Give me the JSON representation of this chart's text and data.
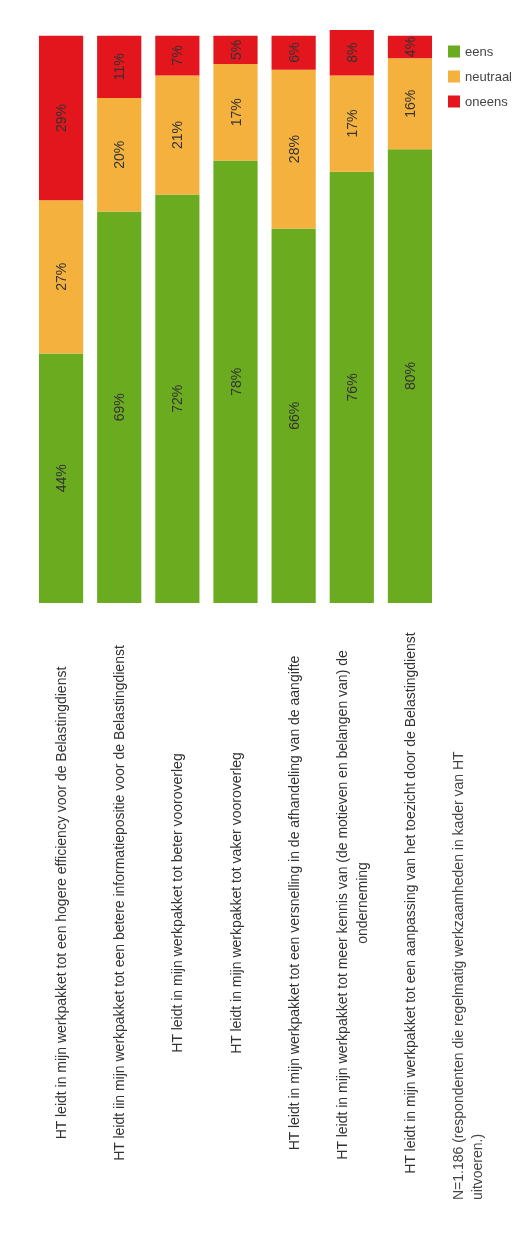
{
  "chart_data": {
    "type": "bar",
    "stacked": true,
    "legend": "top right",
    "categories": [
      "HT leidt in mijn werkpakket tot een hogere efficiency voor de Belastingdienst",
      "HT leidt iin mijn werkpakket tot een betere informatiepositie voor de Belastingdienst",
      "HT leidt in mijn werkpakket tot beter vooroverleg",
      "HT leidt in mijn werkpakket tot vaker vooroverleg",
      "HT leidt in mijn werkpakket tot een versnelling in de afhandeling van de aangifte",
      "HT leidt in mijn werkpakket tot meer kennis van (de motieven en belangen van) de onderneming",
      "HT leidt in mijn werkpakket tot een aanpassing van het toezicht door de Belastingdienst"
    ],
    "series": [
      {
        "name": "eens",
        "color": "#6aab1f",
        "values": [
          44,
          69,
          72,
          78,
          66,
          76,
          80
        ],
        "value_labels": [
          "44%",
          "69%",
          "72%",
          "78%",
          "66%",
          "76%",
          "80%"
        ]
      },
      {
        "name": "neutraal",
        "color": "#f5b13d",
        "values": [
          27,
          20,
          21,
          17,
          28,
          17,
          16
        ],
        "value_labels": [
          "27%",
          "20%",
          "21%",
          "17%",
          "28%",
          "17%",
          "16%"
        ]
      },
      {
        "name": "oneens",
        "color": "#e3161d",
        "values": [
          29,
          11,
          7,
          5,
          6,
          8,
          4
        ],
        "value_labels": [
          "29%",
          "11%",
          "7%",
          "5%",
          "6%",
          "8%",
          "4%"
        ]
      }
    ],
    "annotations": [
      "N=1.186 (respondenten die regelmatig werkzaamheden in kader van HT uitvoeren.)"
    ]
  }
}
